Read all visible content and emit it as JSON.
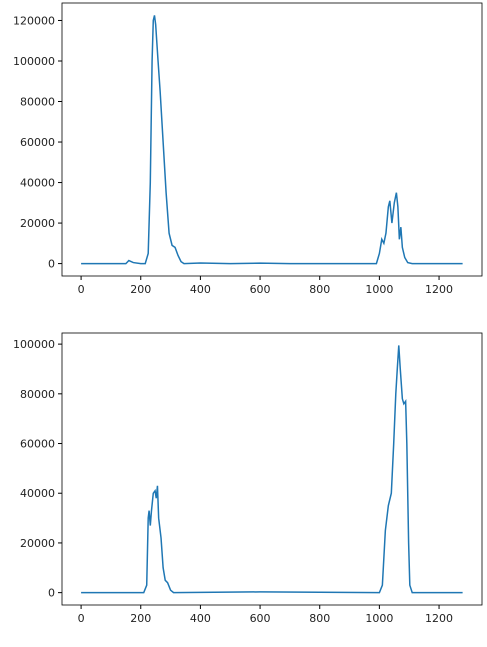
{
  "chart_data": [
    {
      "type": "line",
      "x": [
        0,
        150,
        160,
        175,
        200,
        215,
        225,
        232,
        238,
        242,
        246,
        250,
        258,
        265,
        275,
        285,
        295,
        305,
        315,
        325,
        335,
        345,
        400,
        500,
        600,
        700,
        800,
        900,
        990,
        1000,
        1008,
        1015,
        1022,
        1030,
        1035,
        1042,
        1050,
        1057,
        1062,
        1067,
        1072,
        1077,
        1085,
        1095,
        1110,
        1279
      ],
      "series": [
        {
          "color": "#1f77b4",
          "values": [
            0,
            0,
            1500,
            500,
            0,
            0,
            5000,
            40000,
            100000,
            120000,
            122500,
            118000,
            100000,
            85000,
            60000,
            35000,
            15000,
            9000,
            8000,
            4000,
            1000,
            0,
            300,
            0,
            200,
            0,
            0,
            0,
            0,
            5000,
            12000,
            10000,
            15000,
            28000,
            31000,
            20000,
            30000,
            35000,
            28000,
            12000,
            18000,
            8000,
            3000,
            500,
            0,
            0
          ]
        }
      ],
      "xlim": [
        -64,
        1344
      ],
      "xticks": [
        0,
        200,
        400,
        600,
        800,
        1000,
        1200
      ],
      "ylim": [
        -6125,
        128625
      ],
      "yticks": [
        0,
        20000,
        40000,
        60000,
        80000,
        100000,
        120000
      ]
    },
    {
      "type": "line",
      "x": [
        0,
        210,
        220,
        225,
        228,
        232,
        236,
        242,
        248,
        252,
        256,
        260,
        268,
        275,
        282,
        290,
        300,
        310,
        600,
        1000,
        1010,
        1020,
        1030,
        1040,
        1048,
        1055,
        1060,
        1065,
        1070,
        1077,
        1082,
        1088,
        1092,
        1098,
        1102,
        1110,
        1279
      ],
      "series": [
        {
          "color": "#1f77b4",
          "values": [
            0,
            0,
            3000,
            30000,
            33000,
            27000,
            33000,
            40000,
            41000,
            38000,
            43000,
            30000,
            22000,
            10000,
            5000,
            4000,
            1000,
            0,
            300,
            0,
            3000,
            25000,
            35000,
            40000,
            60000,
            80000,
            90000,
            99500,
            90000,
            78000,
            76000,
            77000,
            60000,
            20000,
            3000,
            0,
            0
          ]
        }
      ],
      "xlim": [
        -64,
        1344
      ],
      "xticks": [
        0,
        200,
        400,
        600,
        800,
        1000,
        1200
      ],
      "ylim": [
        -4975,
        104475
      ],
      "yticks": [
        0,
        20000,
        40000,
        60000,
        80000,
        100000
      ]
    }
  ]
}
